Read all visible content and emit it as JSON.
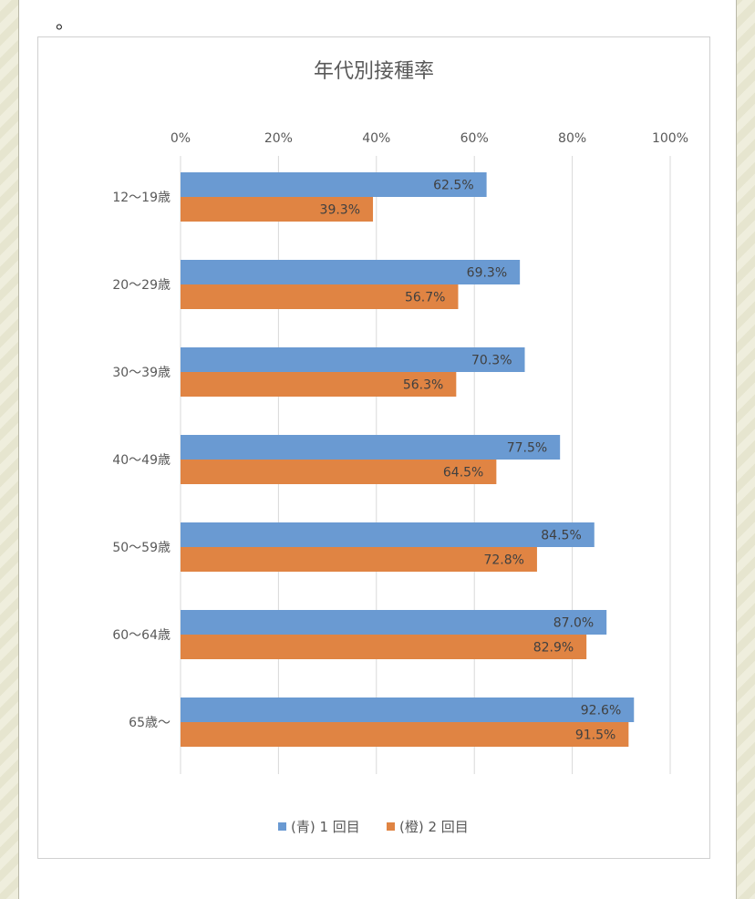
{
  "page": {
    "bullet": "。"
  },
  "chart_data": {
    "type": "bar",
    "orientation": "horizontal",
    "title": "年代別接種率",
    "categories": [
      "12〜19歳",
      "20〜29歳",
      "30〜39歳",
      "40〜49歳",
      "50〜59歳",
      "60〜64歳",
      "65歳〜"
    ],
    "series": [
      {
        "name": "(青) 1 回目",
        "color": "#6a9ad2",
        "values": [
          62.5,
          69.3,
          70.3,
          77.5,
          84.5,
          87.0,
          92.6
        ]
      },
      {
        "name": "(橙) 2 回目",
        "color": "#e08443",
        "values": [
          39.3,
          56.7,
          56.3,
          64.5,
          72.8,
          82.9,
          91.5
        ]
      }
    ],
    "xlim": [
      0,
      100
    ],
    "x_ticks": [
      "0%",
      "20%",
      "40%",
      "60%",
      "80%",
      "100%"
    ],
    "grid": true,
    "legend": "bottom",
    "value_format": "%"
  }
}
